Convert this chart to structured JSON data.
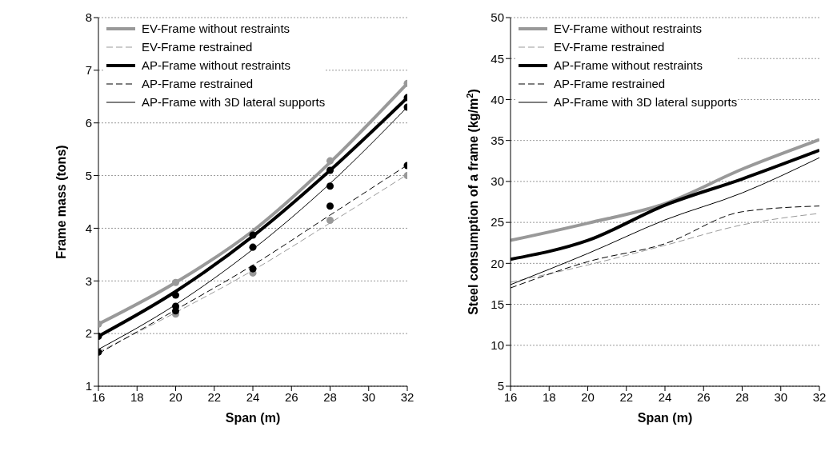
{
  "chart_data": [
    {
      "type": "line",
      "xlabel": "Span (m)",
      "ylabel": "Frame mass (tons)",
      "x": [
        16,
        20,
        24,
        28,
        32
      ],
      "xlim": [
        16,
        32
      ],
      "xticks": [
        16,
        18,
        20,
        22,
        24,
        26,
        28,
        30,
        32
      ],
      "ylim": [
        1,
        8
      ],
      "yticks": [
        1,
        2,
        3,
        4,
        5,
        6,
        7,
        8
      ],
      "grid": "y",
      "legend": "top left",
      "marker": "none",
      "series": [
        {
          "name": "EV-Frame without restraints",
          "color": "#999999",
          "line_style": "solid",
          "values": [
            2.18,
            2.97,
            3.95,
            5.25,
            6.75
          ]
        },
        {
          "name": "EV-Frame restrained",
          "color": "#999999",
          "line_style": "dashed",
          "values": [
            1.65,
            2.4,
            3.2,
            4.1,
            5.02
          ]
        },
        {
          "name": "AP-Frame without restraints",
          "color": "#000000",
          "line_style": "solid",
          "values": [
            1.95,
            2.8,
            3.85,
            5.1,
            6.48
          ]
        },
        {
          "name": "AP-Frame restrained",
          "color": "#000000",
          "line_style": "dashed",
          "values": [
            1.62,
            2.45,
            3.3,
            4.25,
            5.2
          ]
        },
        {
          "name": "AP-Frame with 3D lateral supports",
          "color": "#000000",
          "line_style": "solid",
          "values": [
            1.7,
            2.55,
            3.6,
            4.85,
            6.3
          ]
        },
        {
          "type": "scatter",
          "marker": "circle",
          "color": "#999999",
          "values": [
            2.18,
            2.97,
            null,
            5.28,
            6.75
          ]
        },
        {
          "type": "scatter",
          "marker": "circle",
          "color": "#999999",
          "values": [
            null,
            2.37,
            3.15,
            4.15,
            5.0
          ]
        },
        {
          "type": "scatter",
          "marker": "circle",
          "color": "#000000",
          "values": [
            1.95,
            2.73,
            3.87,
            5.1,
            6.48
          ]
        },
        {
          "type": "scatter",
          "marker": "circle",
          "color": "#000000",
          "values": [
            null,
            2.43,
            3.23,
            4.42,
            5.19
          ]
        },
        {
          "type": "scatter",
          "marker": "circle",
          "color": "#000000",
          "values": [
            1.65,
            2.52,
            3.64,
            4.8,
            6.3
          ]
        }
      ]
    },
    {
      "type": "line",
      "xlabel": "Span (m)",
      "ylabel": "Steel consumption of a frame (kg/m$^{2}$)",
      "x": [
        16,
        20,
        24,
        28,
        32
      ],
      "xlim": [
        16,
        32
      ],
      "xticks": [
        16,
        18,
        20,
        22,
        24,
        26,
        28,
        30,
        32
      ],
      "ylim": [
        5,
        50
      ],
      "yticks": [
        5,
        10,
        15,
        20,
        25,
        30,
        35,
        40,
        45,
        50
      ],
      "grid": "y",
      "legend": "top left",
      "marker": "none",
      "series": [
        {
          "name": "EV-Frame without restraints",
          "color": "#999999",
          "line_style": "solid",
          "values": [
            22.8,
            24.9,
            27.3,
            31.5,
            35.1
          ]
        },
        {
          "name": "EV-Frame restrained",
          "color": "#999999",
          "line_style": "dashed",
          "values": [
            17.7,
            19.8,
            22.2,
            24.7,
            26.1
          ]
        },
        {
          "name": "AP-Frame without restraints",
          "color": "#000000",
          "line_style": "solid",
          "values": [
            20.5,
            22.8,
            27.1,
            30.3,
            33.8
          ]
        },
        {
          "name": "AP-Frame restrained",
          "color": "#000000",
          "line_style": "dashed",
          "values": [
            17.0,
            20.2,
            22.4,
            26.3,
            27.0
          ]
        },
        {
          "name": "AP-Frame with 3D lateral supports",
          "color": "#000000",
          "line_style": "solid",
          "values": [
            17.4,
            21.2,
            25.3,
            28.6,
            32.9
          ]
        }
      ]
    }
  ]
}
